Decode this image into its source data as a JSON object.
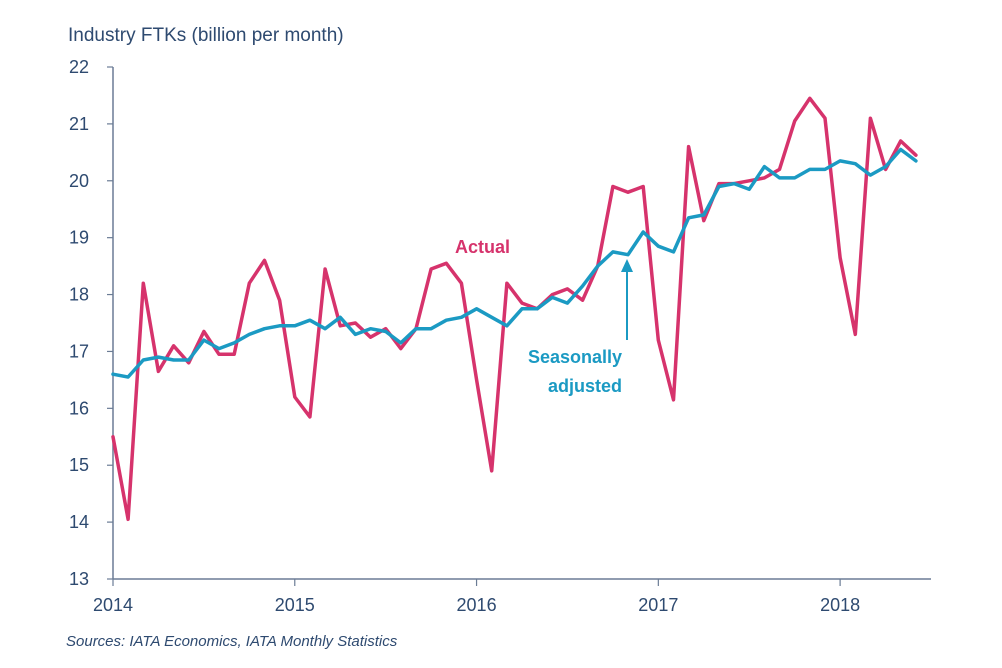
{
  "colors": {
    "actual": "#d6336c",
    "seasonally_adjusted": "#1b9ac3",
    "axis": "#6b7c95",
    "text": "#2e4a70"
  },
  "source_note": "Sources: IATA Economics, IATA Monthly Statistics",
  "annotations": {
    "actual": "Actual",
    "sa_line1": "Seasonally",
    "sa_line2": "adjusted"
  },
  "chart_data": {
    "type": "line",
    "title": "",
    "xlabel": "",
    "ylabel": "Industry FTKs (billion per month)",
    "xlim": [
      2014,
      2018.5
    ],
    "ylim": [
      13,
      22
    ],
    "yticks": [
      13,
      14,
      15,
      16,
      17,
      18,
      19,
      20,
      21,
      22
    ],
    "xticks": [
      2014,
      2015,
      2016,
      2017,
      2018
    ],
    "xtick_labels": [
      "2014",
      "2015",
      "2016",
      "2017",
      "2018"
    ],
    "grid": false,
    "legend": "none",
    "x_start": "2014-01",
    "x_step_months": 1,
    "series": [
      {
        "name": "Actual",
        "values": [
          15.5,
          14.05,
          18.2,
          16.65,
          17.1,
          16.8,
          17.35,
          16.95,
          16.95,
          18.2,
          18.6,
          17.9,
          16.2,
          15.85,
          18.45,
          17.45,
          17.5,
          17.25,
          17.4,
          17.05,
          17.4,
          18.45,
          18.55,
          18.2,
          16.5,
          14.9,
          18.2,
          17.85,
          17.75,
          18.0,
          18.1,
          17.9,
          18.5,
          19.9,
          19.8,
          19.9,
          17.2,
          16.15,
          20.6,
          19.3,
          19.95,
          19.95,
          20.0,
          20.05,
          20.2,
          21.05,
          21.45,
          21.1,
          18.65,
          17.3,
          21.1,
          20.2,
          20.7,
          20.45
        ]
      },
      {
        "name": "Seasonally adjusted",
        "values": [
          16.6,
          16.55,
          16.85,
          16.9,
          16.85,
          16.85,
          17.2,
          17.05,
          17.15,
          17.3,
          17.4,
          17.45,
          17.45,
          17.55,
          17.4,
          17.6,
          17.3,
          17.4,
          17.35,
          17.15,
          17.4,
          17.4,
          17.55,
          17.6,
          17.75,
          17.6,
          17.45,
          17.75,
          17.75,
          17.95,
          17.85,
          18.15,
          18.5,
          18.75,
          18.7,
          19.1,
          18.85,
          18.75,
          19.35,
          19.4,
          19.9,
          19.95,
          19.85,
          20.25,
          20.05,
          20.05,
          20.2,
          20.2,
          20.35,
          20.3,
          20.1,
          20.25,
          20.55,
          20.35
        ]
      }
    ]
  }
}
